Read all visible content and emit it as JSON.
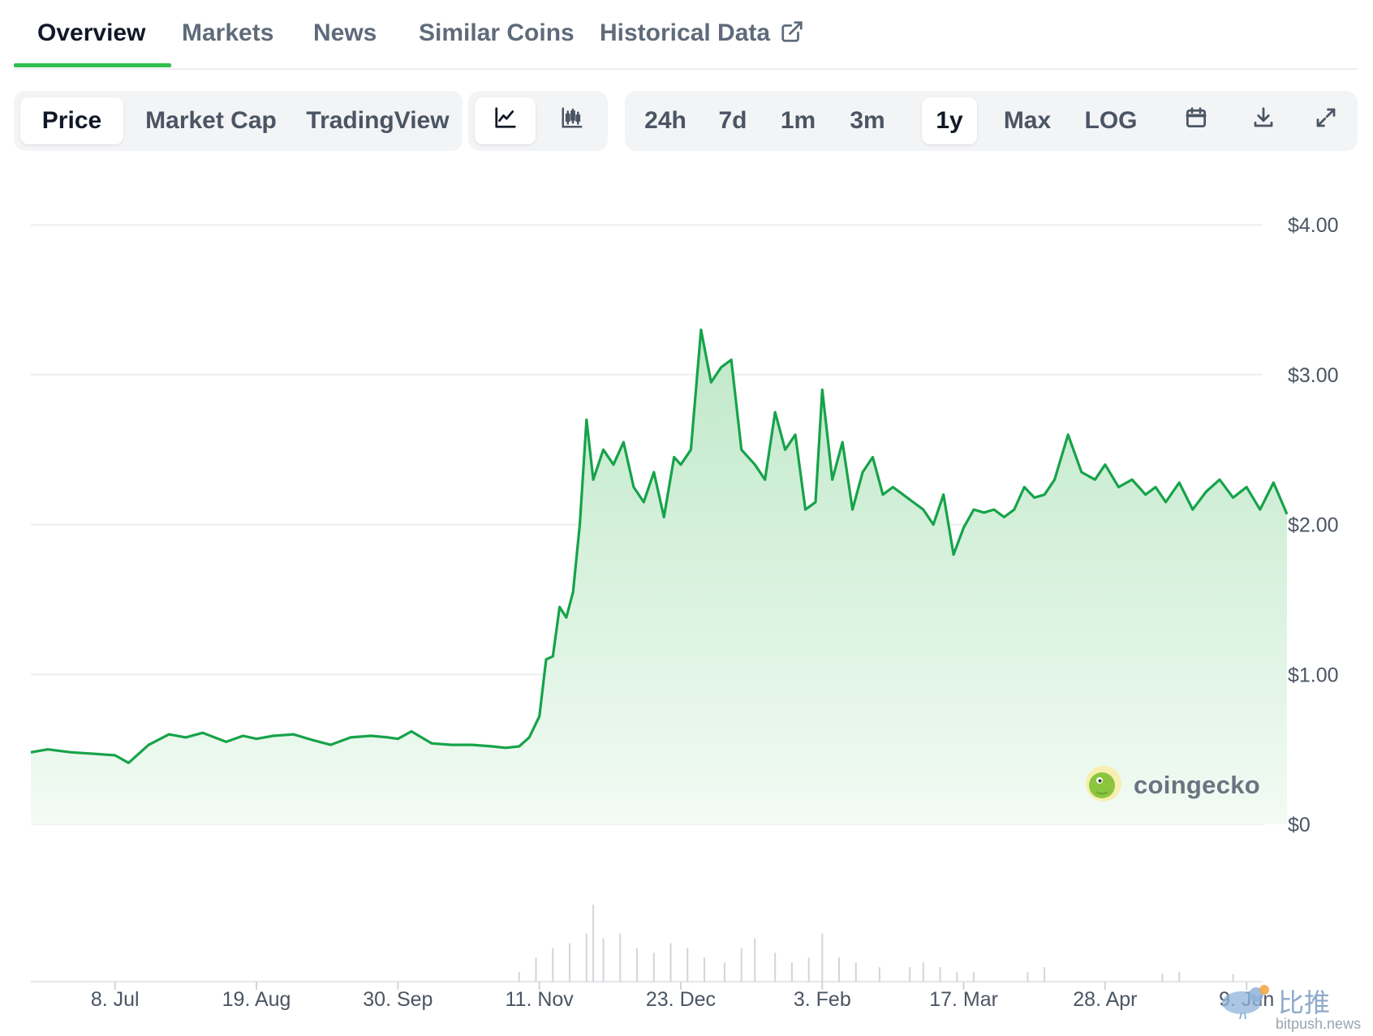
{
  "tabs": [
    {
      "label": "Overview",
      "active": true
    },
    {
      "label": "Markets",
      "active": false
    },
    {
      "label": "News",
      "active": false
    },
    {
      "label": "Similar Coins",
      "active": false
    },
    {
      "label": "Historical Data",
      "active": false,
      "icon": "external-link-icon"
    }
  ],
  "toolbar": {
    "metric_tabs": [
      {
        "label": "Price",
        "active": true
      },
      {
        "label": "Market Cap",
        "active": false
      },
      {
        "label": "TradingView",
        "active": false
      }
    ],
    "chart_type_buttons": [
      {
        "icon": "line-chart-icon",
        "active": true
      },
      {
        "icon": "candlestick-chart-icon",
        "active": false
      }
    ],
    "ranges": [
      {
        "label": "24h",
        "active": false
      },
      {
        "label": "7d",
        "active": false
      },
      {
        "label": "1m",
        "active": false
      },
      {
        "label": "3m",
        "active": false
      },
      {
        "label": "1y",
        "active": true
      },
      {
        "label": "Max",
        "active": false
      },
      {
        "label": "LOG",
        "active": false
      }
    ],
    "action_icons": [
      "calendar-icon",
      "download-icon",
      "fullscreen-icon"
    ]
  },
  "watermark": {
    "brand": "coingecko",
    "site_cn": "比推",
    "site_url": "bitpush.news"
  },
  "colors": {
    "line": "#16a34a",
    "fill_top": "#bfe8c8",
    "fill_bottom": "#f2fbf4",
    "active_tab_underline": "#2fbf4e",
    "volume": "#d1d5db"
  },
  "chart_data": {
    "type": "area",
    "y_tick_labels": [
      "$0",
      "$1.00",
      "$2.00",
      "$3.00",
      "$4.00"
    ],
    "y_ticks": [
      0,
      1,
      2,
      3,
      4
    ],
    "ylim": [
      0,
      4.05
    ],
    "x_tick_labels": [
      "8. Jul",
      "19. Aug",
      "30. Sep",
      "11. Nov",
      "23. Dec",
      "3. Feb",
      "17. Mar",
      "28. Apr",
      "9. Jun"
    ],
    "x_ticks": [
      "2024-07-08",
      "2024-08-19",
      "2024-09-30",
      "2024-11-11",
      "2024-12-23",
      "2025-02-03",
      "2025-03-17",
      "2025-04-28",
      "2025-06-09"
    ],
    "xlim": [
      "2024-06-13",
      "2025-06-21"
    ],
    "grid": true,
    "series": [
      {
        "x": [
          "2024-06-13",
          "2024-06-18",
          "2024-06-25",
          "2024-07-02",
          "2024-07-08",
          "2024-07-12",
          "2024-07-18",
          "2024-07-24",
          "2024-07-29",
          "2024-08-03",
          "2024-08-10",
          "2024-08-15",
          "2024-08-19",
          "2024-08-24",
          "2024-08-30",
          "2024-09-05",
          "2024-09-10",
          "2024-09-16",
          "2024-09-22",
          "2024-09-27",
          "2024-09-30",
          "2024-10-04",
          "2024-10-10",
          "2024-10-16",
          "2024-10-22",
          "2024-10-28",
          "2024-11-01",
          "2024-11-05",
          "2024-11-08",
          "2024-11-11",
          "2024-11-13",
          "2024-11-15",
          "2024-11-17",
          "2024-11-19",
          "2024-11-21",
          "2024-11-23",
          "2024-11-25",
          "2024-11-27",
          "2024-11-30",
          "2024-12-03",
          "2024-12-06",
          "2024-12-09",
          "2024-12-12",
          "2024-12-15",
          "2024-12-18",
          "2024-12-21",
          "2024-12-23",
          "2024-12-26",
          "2024-12-29",
          "2025-01-01",
          "2025-01-04",
          "2025-01-07",
          "2025-01-10",
          "2025-01-14",
          "2025-01-17",
          "2025-01-20",
          "2025-01-23",
          "2025-01-26",
          "2025-01-29",
          "2025-02-01",
          "2025-02-03",
          "2025-02-06",
          "2025-02-09",
          "2025-02-12",
          "2025-02-15",
          "2025-02-18",
          "2025-02-21",
          "2025-02-24",
          "2025-02-27",
          "2025-03-02",
          "2025-03-05",
          "2025-03-08",
          "2025-03-11",
          "2025-03-14",
          "2025-03-17",
          "2025-03-20",
          "2025-03-23",
          "2025-03-26",
          "2025-03-29",
          "2025-04-01",
          "2025-04-04",
          "2025-04-07",
          "2025-04-10",
          "2025-04-13",
          "2025-04-17",
          "2025-04-21",
          "2025-04-25",
          "2025-04-28",
          "2025-05-02",
          "2025-05-06",
          "2025-05-10",
          "2025-05-13",
          "2025-05-16",
          "2025-05-20",
          "2025-05-24",
          "2025-05-28",
          "2025-06-01",
          "2025-06-05",
          "2025-06-09",
          "2025-06-13",
          "2025-06-17",
          "2025-06-21"
        ],
        "values": [
          0.48,
          0.5,
          0.48,
          0.47,
          0.46,
          0.41,
          0.53,
          0.6,
          0.58,
          0.61,
          0.55,
          0.59,
          0.57,
          0.59,
          0.6,
          0.56,
          0.53,
          0.58,
          0.59,
          0.58,
          0.57,
          0.62,
          0.54,
          0.53,
          0.53,
          0.52,
          0.51,
          0.52,
          0.58,
          0.72,
          1.1,
          1.12,
          1.45,
          1.38,
          1.55,
          2.0,
          2.7,
          2.3,
          2.5,
          2.4,
          2.55,
          2.25,
          2.15,
          2.35,
          2.05,
          2.45,
          2.4,
          2.5,
          3.3,
          2.95,
          3.05,
          3.1,
          2.5,
          2.4,
          2.3,
          2.75,
          2.5,
          2.6,
          2.1,
          2.15,
          2.9,
          2.3,
          2.55,
          2.1,
          2.35,
          2.45,
          2.2,
          2.25,
          2.2,
          2.15,
          2.1,
          2.0,
          2.2,
          1.8,
          1.98,
          2.1,
          2.08,
          2.1,
          2.05,
          2.1,
          2.25,
          2.18,
          2.2,
          2.3,
          2.6,
          2.35,
          2.3,
          2.4,
          2.25,
          2.3,
          2.2,
          2.25,
          2.15,
          2.28,
          2.1,
          2.22,
          2.3,
          2.18,
          2.25,
          2.1,
          2.28,
          2.07
        ]
      }
    ],
    "volume": {
      "x": [
        "2024-11-05",
        "2024-11-10",
        "2024-11-15",
        "2024-11-20",
        "2024-11-25",
        "2024-11-27",
        "2024-11-30",
        "2024-12-05",
        "2024-12-10",
        "2024-12-15",
        "2024-12-20",
        "2024-12-25",
        "2024-12-30",
        "2025-01-05",
        "2025-01-10",
        "2025-01-14",
        "2025-01-20",
        "2025-01-25",
        "2025-01-30",
        "2025-02-03",
        "2025-02-08",
        "2025-02-13",
        "2025-02-20",
        "2025-03-01",
        "2025-03-05",
        "2025-03-10",
        "2025-03-15",
        "2025-03-20",
        "2025-04-05",
        "2025-04-10",
        "2025-05-15",
        "2025-05-20",
        "2025-06-05"
      ],
      "values": [
        10,
        25,
        35,
        40,
        50,
        80,
        45,
        50,
        35,
        30,
        40,
        35,
        25,
        20,
        35,
        45,
        30,
        20,
        25,
        50,
        25,
        20,
        15,
        15,
        20,
        15,
        10,
        10,
        10,
        15,
        8,
        10,
        8
      ]
    }
  }
}
